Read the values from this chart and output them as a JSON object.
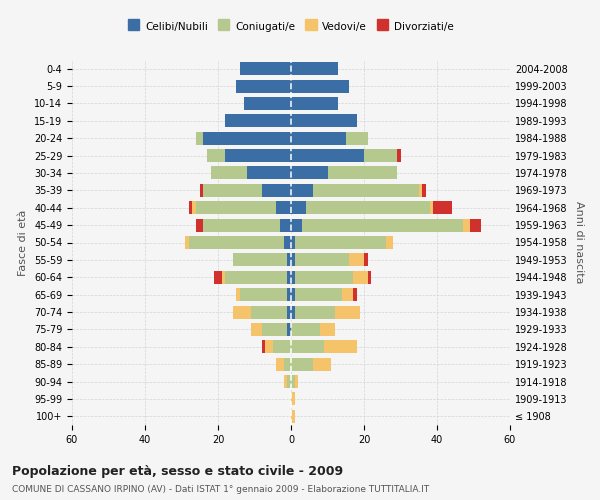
{
  "age_groups": [
    "100+",
    "95-99",
    "90-94",
    "85-89",
    "80-84",
    "75-79",
    "70-74",
    "65-69",
    "60-64",
    "55-59",
    "50-54",
    "45-49",
    "40-44",
    "35-39",
    "30-34",
    "25-29",
    "20-24",
    "15-19",
    "10-14",
    "5-9",
    "0-4"
  ],
  "birth_years": [
    "≤ 1908",
    "1909-1913",
    "1914-1918",
    "1919-1923",
    "1924-1928",
    "1929-1933",
    "1934-1938",
    "1939-1943",
    "1944-1948",
    "1949-1953",
    "1954-1958",
    "1959-1963",
    "1964-1968",
    "1969-1973",
    "1974-1978",
    "1979-1983",
    "1984-1988",
    "1989-1993",
    "1994-1998",
    "1999-2003",
    "2004-2008"
  ],
  "colors": {
    "celibi": "#3b6ea5",
    "coniugati": "#b5c98e",
    "vedovi": "#f5c46a",
    "divorziati": "#d0312d"
  },
  "males": {
    "celibi": [
      0,
      0,
      0,
      0,
      0,
      1,
      1,
      1,
      1,
      1,
      2,
      3,
      4,
      8,
      12,
      18,
      24,
      18,
      13,
      15,
      14
    ],
    "coniugati": [
      0,
      0,
      1,
      2,
      5,
      7,
      10,
      13,
      17,
      15,
      26,
      21,
      22,
      16,
      10,
      5,
      2,
      0,
      0,
      0,
      0
    ],
    "vedovi": [
      0,
      0,
      1,
      2,
      2,
      3,
      5,
      1,
      1,
      0,
      1,
      0,
      1,
      0,
      0,
      0,
      0,
      0,
      0,
      0,
      0
    ],
    "divorziati": [
      0,
      0,
      0,
      0,
      1,
      0,
      0,
      0,
      2,
      0,
      0,
      2,
      1,
      1,
      0,
      0,
      0,
      0,
      0,
      0,
      0
    ]
  },
  "females": {
    "celibi": [
      0,
      0,
      0,
      0,
      0,
      0,
      1,
      1,
      1,
      1,
      1,
      3,
      4,
      6,
      10,
      20,
      15,
      18,
      13,
      16,
      13
    ],
    "coniugati": [
      0,
      0,
      1,
      6,
      9,
      8,
      11,
      13,
      16,
      15,
      25,
      44,
      34,
      29,
      19,
      9,
      6,
      0,
      0,
      0,
      0
    ],
    "vedovi": [
      1,
      1,
      1,
      5,
      9,
      4,
      7,
      3,
      4,
      4,
      2,
      2,
      1,
      1,
      0,
      0,
      0,
      0,
      0,
      0,
      0
    ],
    "divorziati": [
      0,
      0,
      0,
      0,
      0,
      0,
      0,
      1,
      1,
      1,
      0,
      3,
      5,
      1,
      0,
      1,
      0,
      0,
      0,
      0,
      0
    ]
  },
  "title": "Popolazione per età, sesso e stato civile - 2009",
  "subtitle": "COMUNE DI CASSANO IRPINO (AV) - Dati ISTAT 1° gennaio 2009 - Elaborazione TUTTITALIA.IT",
  "ylabel_left": "Fasce di età",
  "ylabel_right": "Anni di nascita",
  "xlim": 60,
  "background_color": "#f5f5f5",
  "grid_color": "#cccccc",
  "legend_labels": [
    "Celibi/Nubili",
    "Coniugati/e",
    "Vedovi/e",
    "Divorziati/e"
  ]
}
